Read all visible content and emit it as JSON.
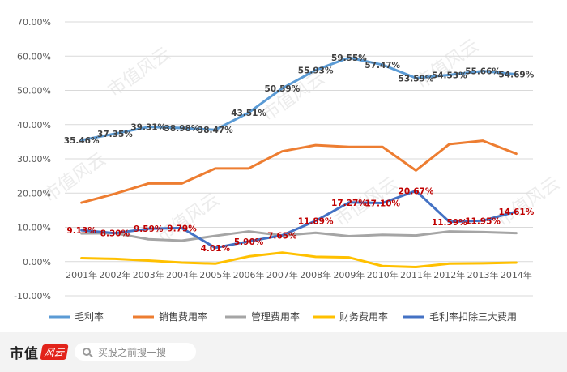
{
  "chart_data": {
    "type": "line",
    "categories": [
      "2001年",
      "2002年",
      "2003年",
      "2004年",
      "2005年",
      "2006年",
      "2007年",
      "2008年",
      "2009年",
      "2010年",
      "2011年",
      "2012年",
      "2013年",
      "2014年"
    ],
    "y_ticks": [
      "70.00%",
      "60.00%",
      "50.00%",
      "40.00%",
      "30.00%",
      "20.00%",
      "10.00%",
      "0.00%",
      "-10.00%"
    ],
    "ylim": [
      -10,
      70
    ],
    "grid": true,
    "legend_position": "bottom",
    "series": [
      {
        "name": "毛利率",
        "color": "#5b9bd5",
        "values": [
          35.46,
          37.35,
          39.31,
          38.98,
          38.47,
          43.51,
          50.59,
          55.93,
          59.55,
          57.47,
          53.59,
          54.53,
          55.66,
          54.69
        ],
        "labels": [
          "35.46%",
          "37.35%",
          "39.31%",
          "38.98%",
          "38.47%",
          "43.51%",
          "50.59%",
          "55.93%",
          "59.55%",
          "57.47%",
          "53.59%",
          "54.53%",
          "55.66%",
          "54.69%"
        ],
        "label_color": "#404040"
      },
      {
        "name": "销售费用率",
        "color": "#ed7d31",
        "values": [
          17.2,
          19.8,
          22.8,
          22.8,
          27.2,
          27.2,
          32.2,
          34.0,
          33.5,
          33.5,
          26.6,
          34.3,
          35.3,
          31.5
        ]
      },
      {
        "name": "管理费用率",
        "color": "#a5a5a5",
        "values": [
          8.2,
          8.3,
          6.5,
          6.1,
          7.5,
          8.8,
          7.6,
          8.4,
          7.4,
          7.8,
          7.6,
          8.8,
          8.6,
          8.3
        ]
      },
      {
        "name": "财务费用率",
        "color": "#ffc000",
        "values": [
          1.0,
          0.8,
          0.3,
          -0.3,
          -0.6,
          1.5,
          2.6,
          1.4,
          1.2,
          -1.3,
          -1.6,
          -0.6,
          -0.5,
          -0.3
        ]
      },
      {
        "name": "毛利率扣除三大费用",
        "color": "#4472c4",
        "values": [
          9.13,
          8.3,
          9.59,
          9.79,
          4.01,
          5.9,
          7.65,
          11.89,
          17.27,
          17.1,
          20.67,
          11.59,
          11.95,
          14.61
        ],
        "labels": [
          "9.13%",
          "8.30%",
          "9.59%",
          "9.79%",
          "4.01%",
          "5.90%",
          "7.65%",
          "11.89%",
          "17.27%",
          "17.10%",
          "20.67%",
          "11.59%",
          "11.95%",
          "14.61%"
        ],
        "label_color": "#c00000"
      }
    ]
  },
  "watermark": "市值风云",
  "footer": {
    "brand_name": "市值",
    "brand_seal": "风云",
    "search_placeholder": "买股之前搜一搜",
    "search_icon": "search-icon"
  }
}
